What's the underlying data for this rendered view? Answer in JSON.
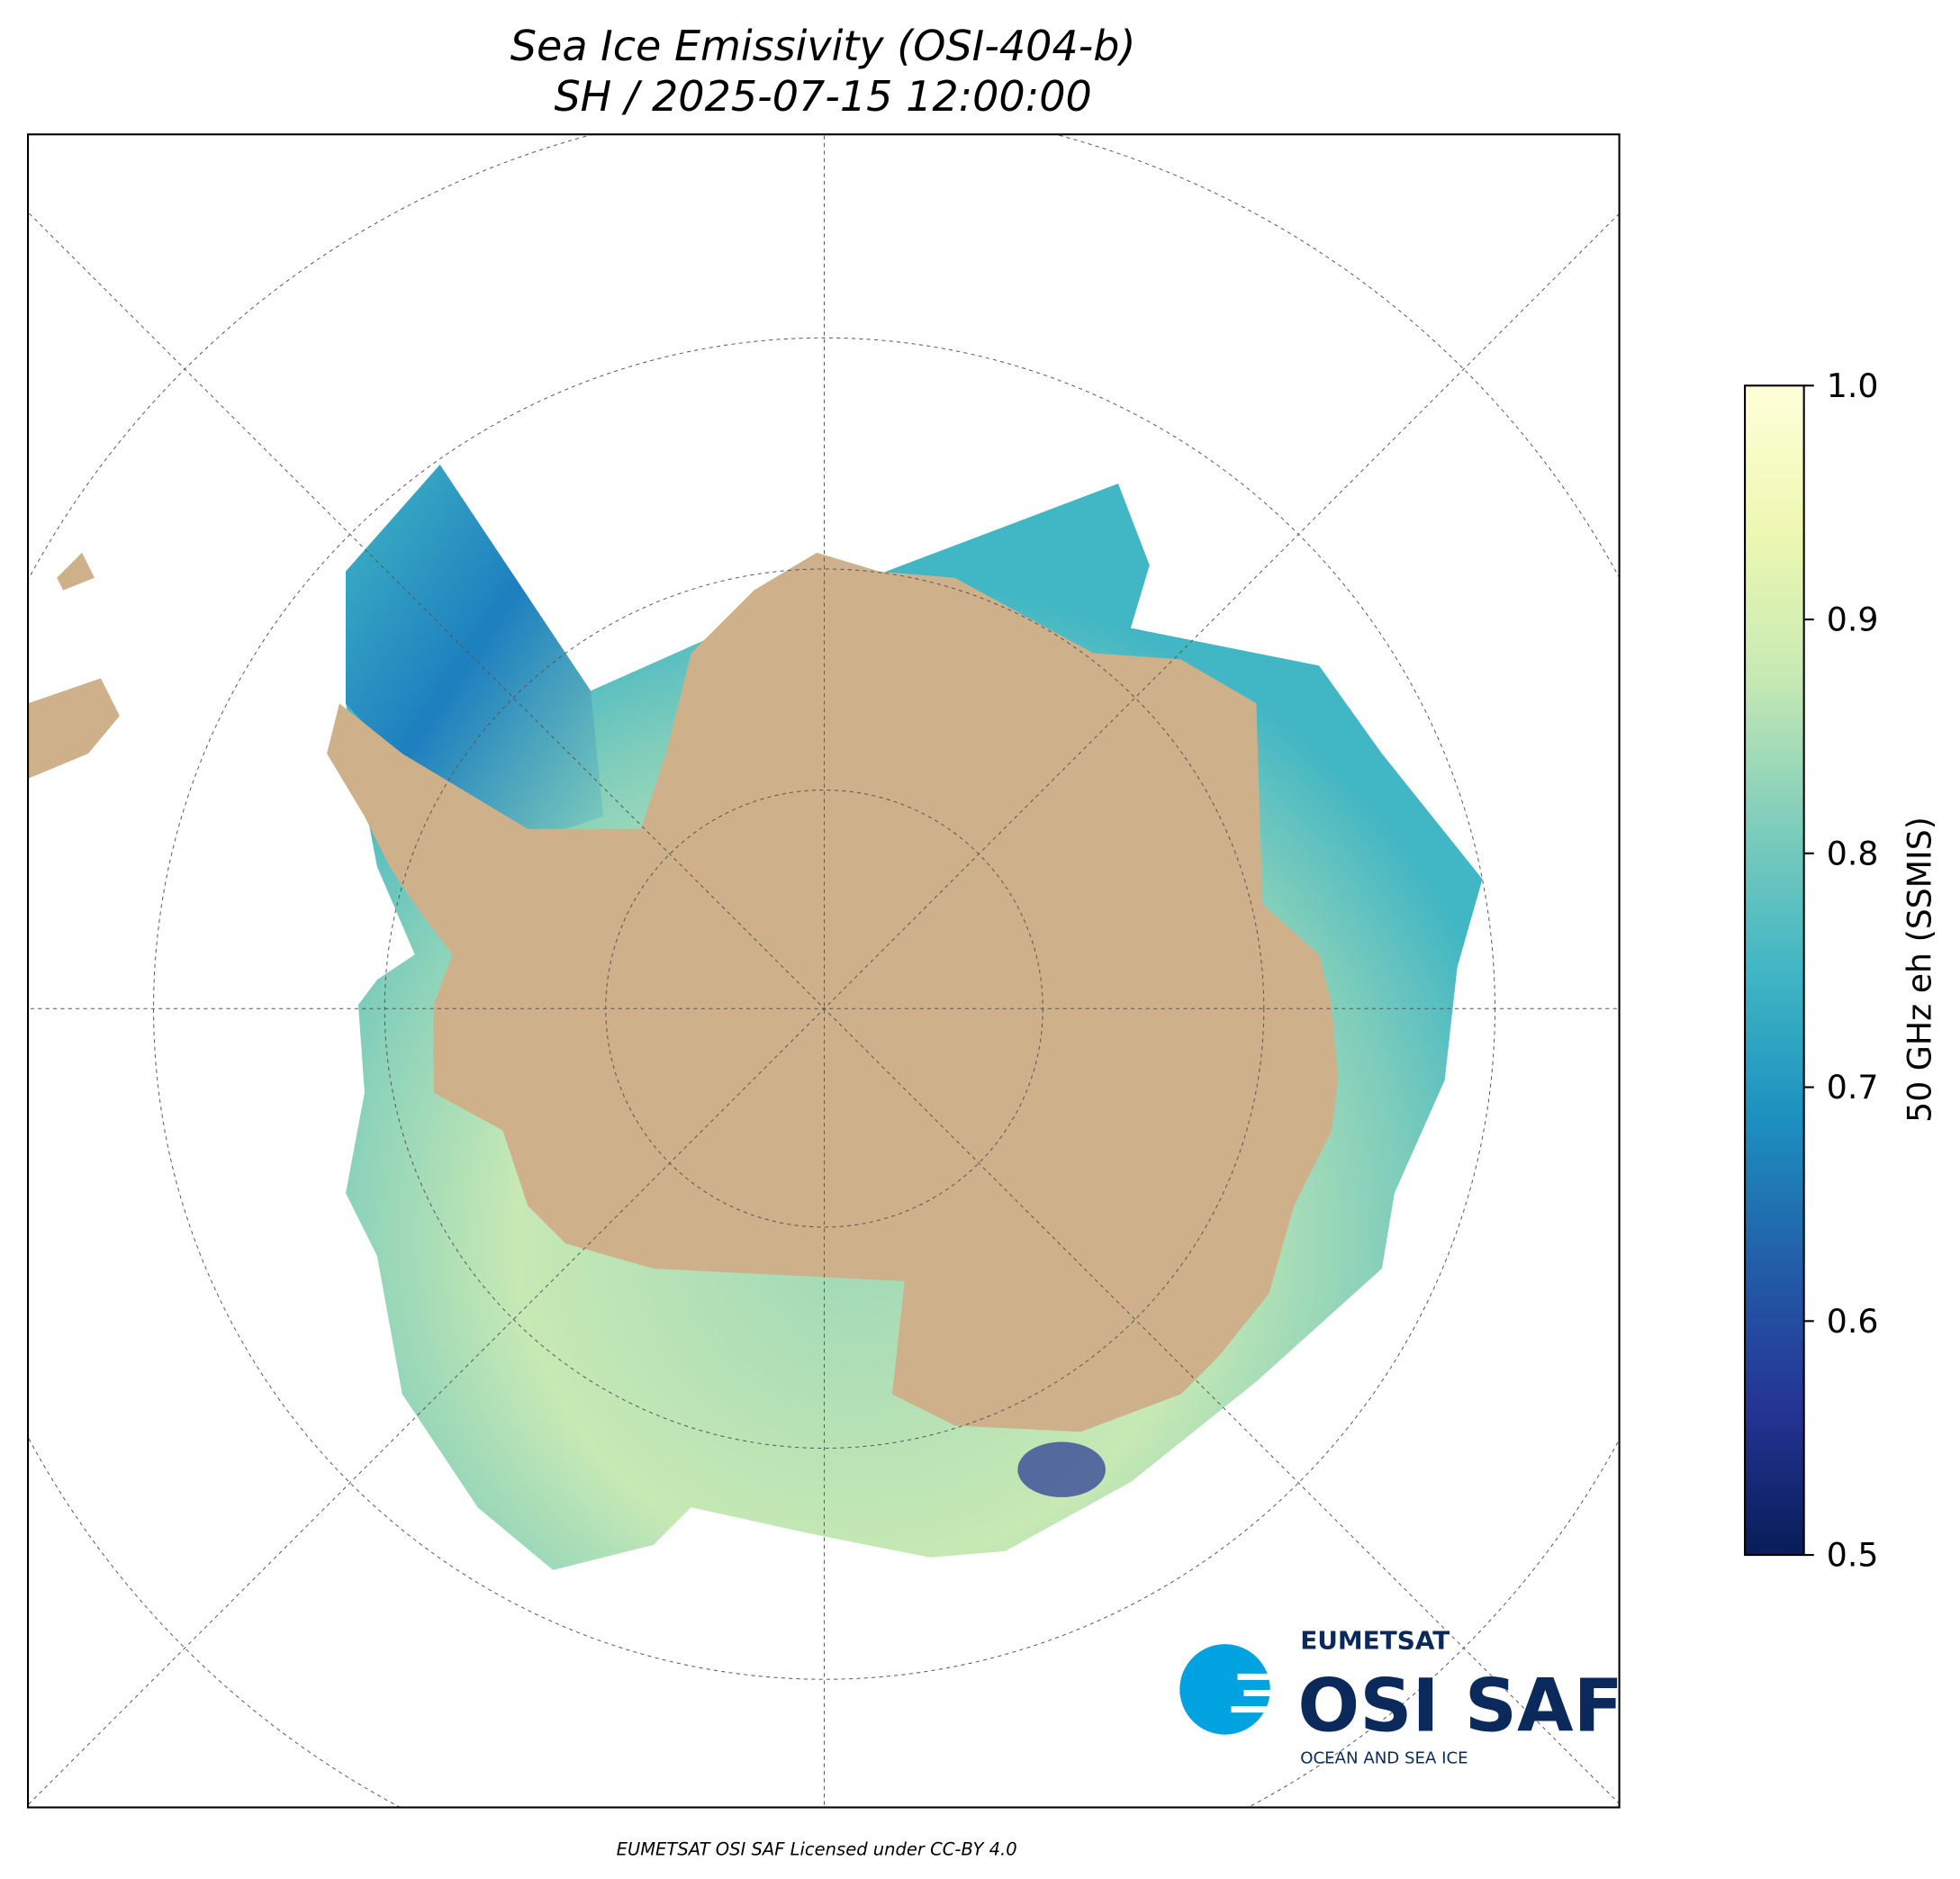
{
  "title": [
    "Sea Ice Emissivity (OSI-404-b)",
    "SH / 2025-07-15 12:00:00"
  ],
  "colorbar": {
    "label": "50 GHz eh (SSMIS)",
    "lim": [
      0.5,
      1
    ],
    "ticks": [
      0.5,
      0.6,
      0.7,
      0.8,
      0.9,
      {
        "value": 1,
        "label": "1.0"
      }
    ],
    "colormap": [
      "#081d58",
      "#253494",
      "#225ea8",
      "#1d91c0",
      "#41b6c4",
      "#7fcdbb",
      "#c7e9b4",
      "#edf8b1",
      "#ffffd9"
    ]
  },
  "logo": {
    "org": "EUMETSAT",
    "name": "OSI SAF",
    "tagline": "OCEAN AND SEA ICE"
  },
  "footer": "EUMETSAT OSI SAF Licensed under CC-BY 4.0"
}
